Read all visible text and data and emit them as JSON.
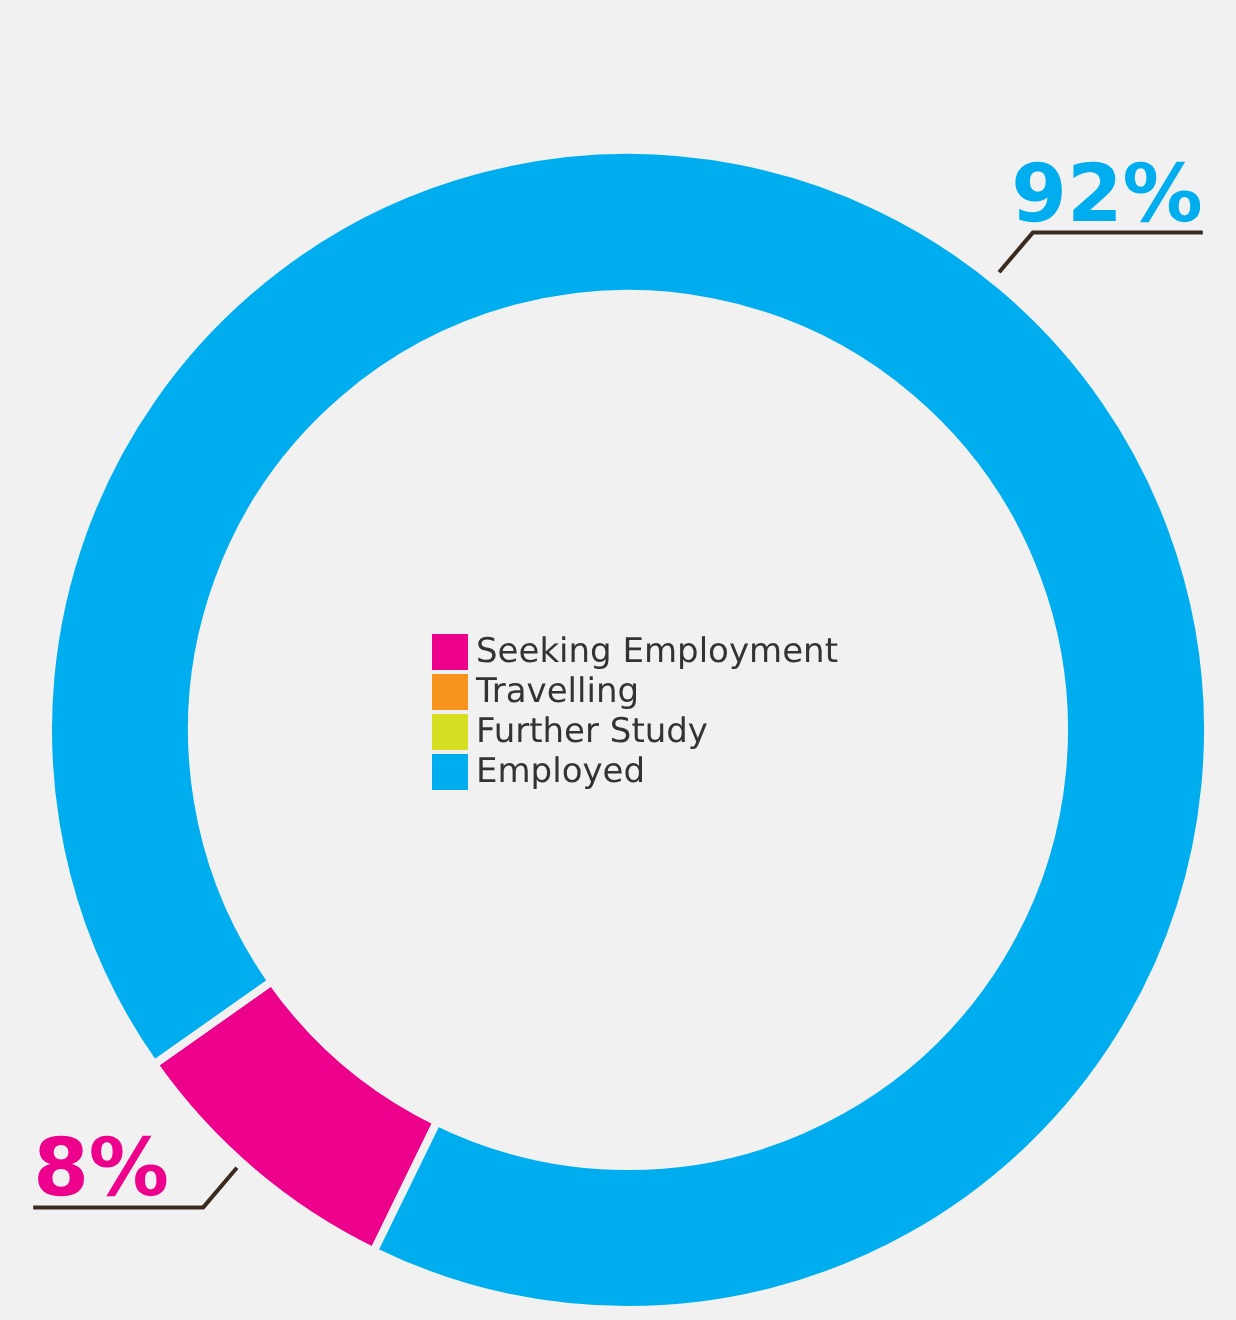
{
  "chart_data": {
    "type": "donut",
    "categories": [
      "Seeking Employment",
      "Travelling",
      "Further Study",
      "Employed"
    ],
    "values": [
      8,
      0,
      0,
      92
    ],
    "colors": [
      "#ec008c",
      "#f7941d",
      "#d7df23",
      "#00aeef"
    ],
    "value_labels": [
      "8%",
      null,
      null,
      "92%"
    ],
    "legend": "center"
  }
}
